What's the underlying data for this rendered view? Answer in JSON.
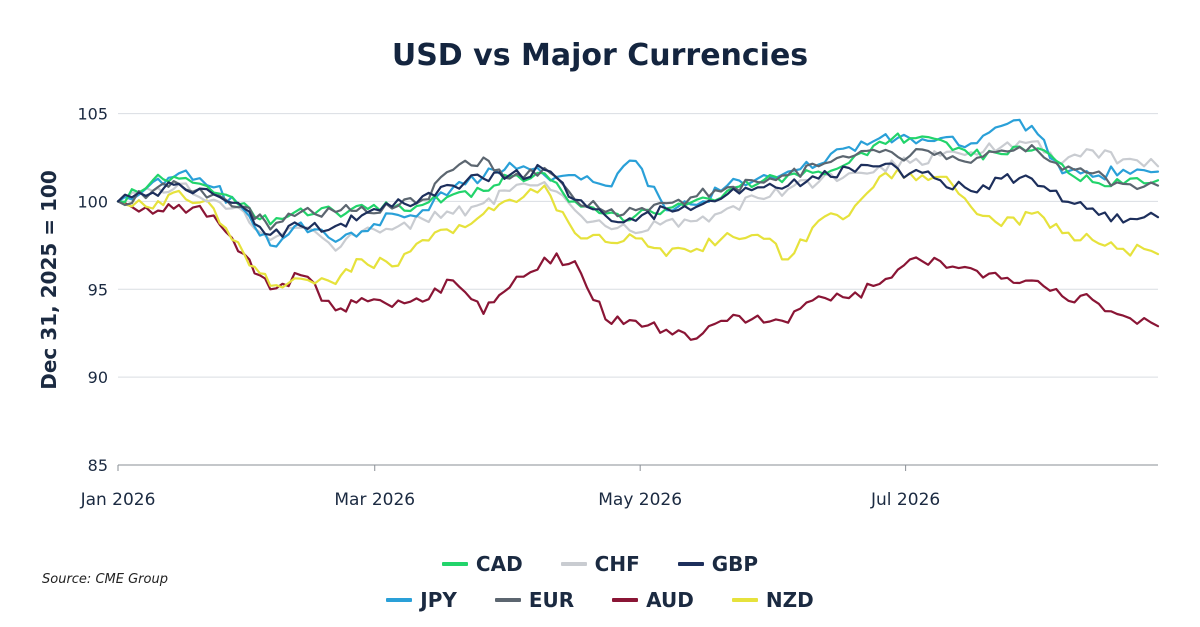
{
  "title": "USD vs Major Currencies",
  "source": "Source: CME Group",
  "chart_data": {
    "type": "line",
    "title": "USD vs Major Currencies",
    "xlabel": "",
    "ylabel": "Dec 31, 2025 = 100",
    "ylim": [
      85,
      106
    ],
    "yticks": [
      85,
      90,
      95,
      100,
      105
    ],
    "xticks": [
      {
        "label": "Jan 2026",
        "day": 0
      },
      {
        "label": "Mar 2026",
        "day": 59
      },
      {
        "label": "May 2026",
        "day": 120
      },
      {
        "label": "Jul 2026",
        "day": 181
      }
    ],
    "x_range_days": [
      0,
      239
    ],
    "grid": "horizontal",
    "legend": "bottom",
    "series": [
      {
        "name": "CAD",
        "color": "#22d46b",
        "x": [
          0,
          8,
          14,
          22,
          29,
          35,
          42,
          50,
          56,
          63,
          70,
          77,
          84,
          90,
          98,
          105,
          112,
          119,
          126,
          133,
          140,
          147,
          154,
          161,
          168,
          175,
          182,
          189,
          196,
          203,
          210,
          217,
          224,
          231,
          239
        ],
        "values": [
          100,
          101.2,
          101.3,
          100.5,
          99.9,
          98.7,
          99.6,
          99.4,
          99.8,
          99.6,
          99.8,
          100.4,
          100.6,
          101.4,
          101.6,
          100.0,
          99.3,
          99.2,
          99.6,
          100.1,
          100.6,
          101.0,
          101.5,
          101.7,
          102.2,
          103.4,
          103.6,
          103.5,
          102.6,
          102.7,
          102.9,
          102.1,
          101.1,
          101.0,
          101.2
        ]
      },
      {
        "name": "CHF",
        "color": "#c9ccd1",
        "x": [
          0,
          8,
          14,
          22,
          29,
          35,
          42,
          50,
          56,
          63,
          70,
          77,
          84,
          90,
          98,
          105,
          112,
          119,
          126,
          133,
          140,
          147,
          154,
          161,
          168,
          175,
          182,
          189,
          196,
          203,
          210,
          217,
          224,
          231,
          239
        ],
        "values": [
          100,
          100.6,
          101.0,
          100.1,
          99.4,
          97.8,
          98.5,
          97.2,
          98.3,
          98.4,
          99.0,
          99.3,
          99.9,
          100.6,
          101.1,
          99.5,
          98.6,
          98.2,
          98.9,
          98.9,
          99.6,
          100.2,
          100.7,
          101.1,
          101.6,
          102.0,
          102.2,
          102.6,
          102.8,
          103.1,
          103.4,
          102.2,
          102.9,
          102.4,
          102.0
        ]
      },
      {
        "name": "GBP",
        "color": "#1d2f5c",
        "x": [
          0,
          8,
          14,
          22,
          29,
          35,
          42,
          50,
          56,
          63,
          70,
          77,
          84,
          90,
          98,
          105,
          112,
          119,
          126,
          133,
          140,
          147,
          154,
          161,
          168,
          175,
          182,
          189,
          196,
          203,
          210,
          217,
          224,
          231,
          239
        ],
        "values": [
          100,
          100.5,
          101.0,
          100.4,
          99.6,
          98.1,
          98.6,
          98.6,
          99.2,
          99.7,
          100.3,
          100.9,
          101.3,
          101.5,
          101.8,
          100.1,
          99.2,
          98.9,
          99.6,
          99.7,
          100.4,
          100.8,
          100.9,
          101.3,
          101.9,
          102.0,
          101.6,
          101.2,
          100.6,
          101.3,
          101.3,
          100.0,
          99.6,
          98.8,
          99.1
        ]
      },
      {
        "name": "JPY",
        "color": "#2aa0d8",
        "x": [
          0,
          8,
          14,
          22,
          29,
          35,
          42,
          50,
          56,
          63,
          70,
          77,
          84,
          90,
          98,
          105,
          112,
          119,
          126,
          133,
          140,
          147,
          154,
          161,
          168,
          175,
          182,
          189,
          196,
          203,
          210,
          217,
          224,
          231,
          239
        ],
        "values": [
          100,
          101.1,
          101.6,
          100.8,
          99.5,
          97.5,
          98.8,
          97.7,
          98.3,
          99.3,
          99.5,
          100.8,
          101.4,
          102.2,
          101.5,
          101.5,
          100.9,
          102.3,
          99.5,
          99.8,
          100.9,
          101.3,
          101.7,
          102.1,
          103.1,
          103.6,
          103.6,
          103.6,
          103.3,
          104.3,
          104.3,
          101.6,
          101.4,
          101.8,
          101.7
        ]
      },
      {
        "name": "EUR",
        "color": "#5c6670",
        "x": [
          0,
          8,
          14,
          22,
          29,
          35,
          42,
          50,
          56,
          63,
          70,
          77,
          84,
          90,
          98,
          105,
          112,
          119,
          126,
          133,
          140,
          147,
          154,
          161,
          168,
          175,
          182,
          189,
          196,
          203,
          210,
          217,
          224,
          231,
          239
        ],
        "values": [
          100,
          100.6,
          101.0,
          100.4,
          99.7,
          98.4,
          99.4,
          99.4,
          99.7,
          99.6,
          100.1,
          101.8,
          102.5,
          101.3,
          101.9,
          100.1,
          99.4,
          99.5,
          99.9,
          100.3,
          100.8,
          101.1,
          101.5,
          102.0,
          102.5,
          102.8,
          102.6,
          102.8,
          102.2,
          102.9,
          103.2,
          101.8,
          101.6,
          101.0,
          100.9
        ]
      },
      {
        "name": "AUD",
        "color": "#8a1535",
        "x": [
          0,
          8,
          14,
          22,
          29,
          35,
          42,
          50,
          56,
          63,
          70,
          77,
          84,
          90,
          98,
          105,
          112,
          119,
          126,
          133,
          140,
          147,
          154,
          161,
          168,
          175,
          182,
          189,
          196,
          203,
          210,
          217,
          224,
          231,
          239
        ],
        "values": [
          100,
          99.3,
          99.8,
          99.2,
          97.0,
          95.0,
          95.8,
          93.8,
          94.5,
          94.0,
          94.3,
          95.5,
          93.6,
          95.1,
          96.8,
          96.6,
          93.3,
          93.2,
          92.7,
          92.2,
          93.2,
          93.5,
          93.1,
          94.6,
          94.5,
          95.3,
          96.7,
          96.6,
          96.2,
          95.6,
          95.5,
          94.6,
          94.4,
          93.5,
          92.9
        ]
      },
      {
        "name": "NZD",
        "color": "#e6e23c",
        "x": [
          0,
          8,
          14,
          22,
          29,
          35,
          42,
          50,
          56,
          63,
          70,
          77,
          84,
          90,
          98,
          105,
          112,
          119,
          126,
          133,
          140,
          147,
          154,
          161,
          168,
          175,
          182,
          189,
          196,
          203,
          210,
          217,
          224,
          231,
          239
        ],
        "values": [
          100,
          99.6,
          100.6,
          99.6,
          97.0,
          95.2,
          95.6,
          95.3,
          96.7,
          96.3,
          97.8,
          98.2,
          99.3,
          100.1,
          100.9,
          98.2,
          97.7,
          97.9,
          96.9,
          97.3,
          98.2,
          98.1,
          96.7,
          98.9,
          99.2,
          101.4,
          101.6,
          101.4,
          99.7,
          98.6,
          99.3,
          98.2,
          97.8,
          97.3,
          97.0
        ]
      }
    ]
  }
}
